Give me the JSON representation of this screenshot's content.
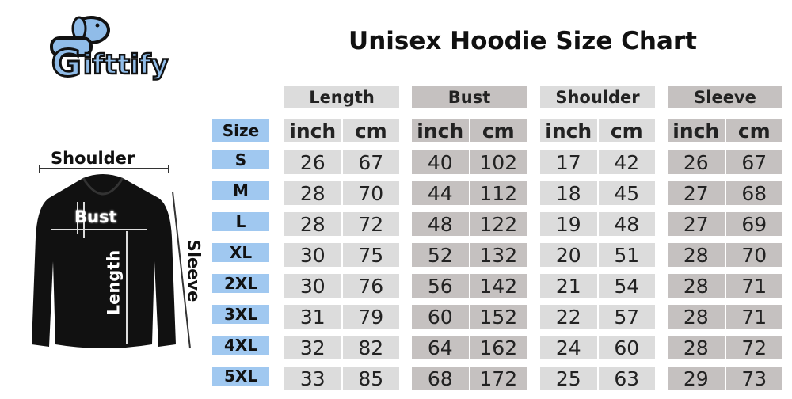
{
  "brand": {
    "name": "Gifttify",
    "color": "#90bce8"
  },
  "title": "Unisex Hoodie Size Chart",
  "diagram_labels": {
    "shoulder": "Shoulder",
    "bust": "Bust",
    "length": "Length",
    "sleeve": "Sleeve"
  },
  "colors": {
    "size_col": "#a0c8f0",
    "light_gray": "#dcdcdc",
    "dark_gray": "#c5c1c0"
  },
  "table": {
    "size_header": "Size",
    "groups": [
      {
        "label": "Length",
        "units": [
          "inch",
          "cm"
        ]
      },
      {
        "label": "Bust",
        "units": [
          "inch",
          "cm"
        ]
      },
      {
        "label": "Shoulder",
        "units": [
          "inch",
          "cm"
        ]
      },
      {
        "label": "Sleeve",
        "units": [
          "inch",
          "cm"
        ]
      }
    ],
    "rows": [
      {
        "size": "S",
        "values": [
          "26",
          "67",
          "40",
          "102",
          "17",
          "42",
          "26",
          "67"
        ]
      },
      {
        "size": "M",
        "values": [
          "28",
          "70",
          "44",
          "112",
          "18",
          "45",
          "27",
          "68"
        ]
      },
      {
        "size": "L",
        "values": [
          "28",
          "72",
          "48",
          "122",
          "19",
          "48",
          "27",
          "69"
        ]
      },
      {
        "size": "XL",
        "values": [
          "30",
          "75",
          "52",
          "132",
          "20",
          "51",
          "28",
          "70"
        ]
      },
      {
        "size": "2XL",
        "values": [
          "30",
          "76",
          "56",
          "142",
          "21",
          "54",
          "28",
          "71"
        ]
      },
      {
        "size": "3XL",
        "values": [
          "31",
          "79",
          "60",
          "152",
          "22",
          "57",
          "28",
          "71"
        ]
      },
      {
        "size": "4XL",
        "values": [
          "32",
          "82",
          "64",
          "162",
          "24",
          "60",
          "28",
          "72"
        ]
      },
      {
        "size": "5XL",
        "values": [
          "33",
          "85",
          "68",
          "172",
          "25",
          "63",
          "29",
          "73"
        ]
      }
    ]
  }
}
